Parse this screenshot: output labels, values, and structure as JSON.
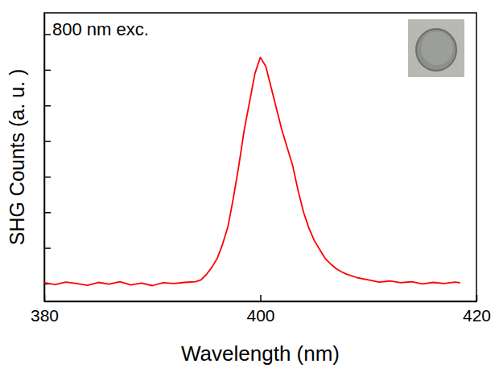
{
  "chart_data": {
    "type": "line",
    "xlabel": "Wavelength (nm)",
    "ylabel": "SHG Counts (a. u. )",
    "annotation": "800 nm exc.",
    "color": "#ff0000",
    "grid": false,
    "tick_labels": "x",
    "xlim": [
      380,
      420
    ],
    "xticks": [
      380,
      400,
      420
    ],
    "ylim": [
      -0.5,
      7.6
    ],
    "yticks": [
      0,
      1,
      2,
      3,
      4,
      5,
      6,
      7
    ],
    "x": [
      380,
      381,
      382,
      383,
      384,
      385,
      386,
      387,
      388,
      389,
      390,
      391,
      392,
      393,
      394,
      394.5,
      395,
      395.5,
      396,
      396.5,
      397,
      397.5,
      398,
      398.5,
      399,
      399.5,
      400,
      400.5,
      401,
      401.5,
      402,
      402.5,
      403,
      403.5,
      404,
      404.5,
      405,
      405.5,
      406,
      406.5,
      407,
      407.5,
      408,
      409,
      410,
      411,
      412,
      413,
      414,
      415,
      416,
      417,
      418,
      418.5
    ],
    "values": [
      0.02,
      -0.03,
      0.04,
      0.0,
      -0.05,
      0.03,
      -0.02,
      0.05,
      -0.04,
      0.01,
      -0.06,
      0.02,
      0.0,
      0.03,
      0.05,
      0.1,
      0.25,
      0.45,
      0.7,
      1.1,
      1.6,
      2.4,
      3.3,
      4.3,
      5.1,
      5.9,
      6.35,
      6.1,
      5.5,
      4.9,
      4.3,
      3.8,
      3.3,
      2.6,
      2.0,
      1.55,
      1.2,
      0.95,
      0.7,
      0.55,
      0.42,
      0.33,
      0.26,
      0.16,
      0.1,
      0.04,
      0.07,
      0.02,
      0.05,
      -0.01,
      0.03,
      0.0,
      0.04,
      0.02
    ]
  }
}
